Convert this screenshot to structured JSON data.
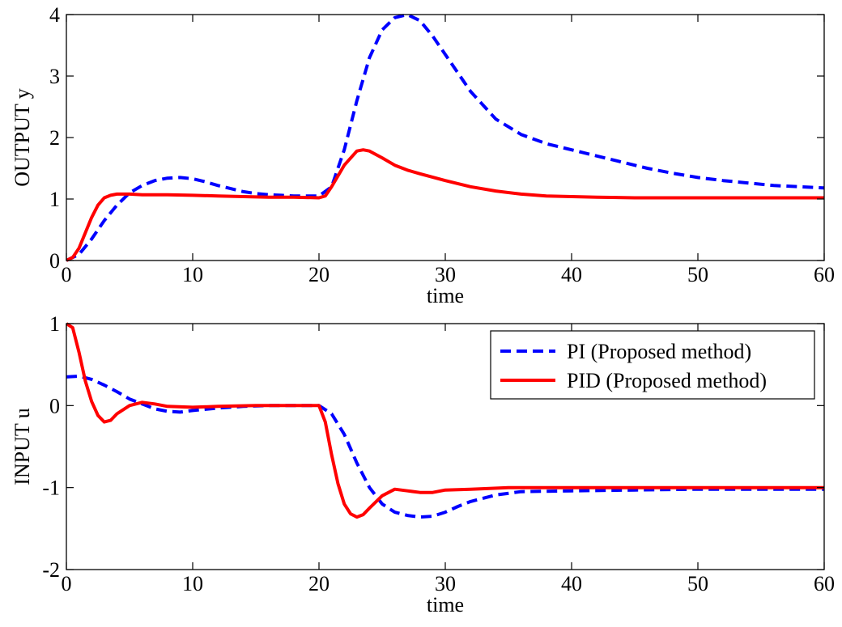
{
  "chart_data": [
    {
      "type": "line",
      "xlabel": "time",
      "ylabel": "OUTPUT  y",
      "xlim": [
        0,
        60
      ],
      "ylim": [
        0,
        4
      ],
      "xticks": [
        0,
        10,
        20,
        30,
        40,
        50,
        60
      ],
      "yticks": [
        0,
        1,
        2,
        3,
        4
      ],
      "grid": false,
      "series": [
        {
          "color": "#0000ff",
          "style": "dashed",
          "x": [
            0,
            1,
            2,
            3,
            4,
            5,
            6,
            7,
            8,
            9,
            10,
            11,
            12,
            13,
            14,
            15,
            16,
            17,
            18,
            19,
            20,
            21,
            22,
            23,
            24,
            25,
            26,
            27,
            28,
            29,
            30,
            32,
            34,
            36,
            38,
            40,
            42,
            44,
            46,
            48,
            50,
            52,
            54,
            56,
            58,
            60
          ],
          "y": [
            0,
            0.1,
            0.35,
            0.65,
            0.9,
            1.1,
            1.22,
            1.3,
            1.34,
            1.35,
            1.33,
            1.28,
            1.22,
            1.17,
            1.12,
            1.09,
            1.07,
            1.06,
            1.05,
            1.05,
            1.05,
            1.2,
            1.8,
            2.6,
            3.3,
            3.75,
            3.95,
            4.0,
            3.9,
            3.65,
            3.35,
            2.75,
            2.3,
            2.05,
            1.9,
            1.8,
            1.7,
            1.6,
            1.5,
            1.42,
            1.35,
            1.3,
            1.26,
            1.22,
            1.2,
            1.18
          ]
        },
        {
          "color": "#ff0000",
          "style": "solid",
          "x": [
            0,
            0.5,
            1,
            1.5,
            2,
            2.5,
            3,
            3.5,
            4,
            5,
            6,
            8,
            10,
            12,
            14,
            16,
            18,
            20,
            20.5,
            21,
            22,
            23,
            23.5,
            24,
            25,
            26,
            27,
            28,
            30,
            32,
            34,
            36,
            38,
            40,
            42,
            45,
            50,
            55,
            60
          ],
          "y": [
            0,
            0.05,
            0.2,
            0.45,
            0.7,
            0.9,
            1.02,
            1.06,
            1.08,
            1.08,
            1.07,
            1.07,
            1.06,
            1.05,
            1.04,
            1.03,
            1.03,
            1.02,
            1.05,
            1.2,
            1.55,
            1.78,
            1.8,
            1.78,
            1.67,
            1.55,
            1.47,
            1.41,
            1.3,
            1.2,
            1.13,
            1.08,
            1.05,
            1.04,
            1.03,
            1.02,
            1.02,
            1.02,
            1.02
          ]
        }
      ]
    },
    {
      "type": "line",
      "xlabel": "time",
      "ylabel": "INPUT  u",
      "xlim": [
        0,
        60
      ],
      "ylim": [
        -2,
        1
      ],
      "xticks": [
        0,
        10,
        20,
        30,
        40,
        50,
        60
      ],
      "yticks": [
        -2,
        -1,
        0,
        1
      ],
      "grid": false,
      "legend_position": "top-right",
      "series": [
        {
          "name": "PI (Proposed method)",
          "color": "#0000ff",
          "style": "dashed",
          "x": [
            0,
            1,
            2,
            3,
            4,
            5,
            6,
            7,
            8,
            9,
            10,
            12,
            14,
            16,
            18,
            20,
            21,
            22,
            23,
            24,
            25,
            26,
            27,
            28,
            29,
            30,
            31,
            32,
            34,
            36,
            40,
            45,
            50,
            55,
            60
          ],
          "y": [
            0.35,
            0.36,
            0.32,
            0.25,
            0.17,
            0.08,
            0.02,
            -0.04,
            -0.07,
            -0.08,
            -0.06,
            -0.03,
            -0.01,
            0,
            0,
            0,
            -0.1,
            -0.35,
            -0.7,
            -1.0,
            -1.2,
            -1.3,
            -1.34,
            -1.36,
            -1.35,
            -1.3,
            -1.23,
            -1.17,
            -1.09,
            -1.05,
            -1.04,
            -1.03,
            -1.02,
            -1.02,
            -1.02
          ]
        },
        {
          "name": "PID (Proposed method)",
          "color": "#ff0000",
          "style": "solid",
          "x": [
            0,
            0.5,
            1,
            1.5,
            2,
            2.5,
            3,
            3.5,
            4,
            5,
            6,
            7,
            8,
            10,
            12,
            15,
            20,
            20.5,
            21,
            21.5,
            22,
            22.5,
            23,
            23.5,
            24,
            25,
            26,
            27,
            28,
            29,
            30,
            32,
            35,
            40,
            50,
            60
          ],
          "y": [
            1.0,
            0.95,
            0.65,
            0.3,
            0.05,
            -0.12,
            -0.2,
            -0.18,
            -0.1,
            0.0,
            0.04,
            0.02,
            -0.01,
            -0.02,
            -0.01,
            0,
            0,
            -0.2,
            -0.6,
            -0.95,
            -1.2,
            -1.32,
            -1.36,
            -1.33,
            -1.25,
            -1.1,
            -1.02,
            -1.04,
            -1.06,
            -1.06,
            -1.03,
            -1.02,
            -1.0,
            -1.0,
            -1.0,
            -1.0
          ]
        }
      ]
    }
  ]
}
